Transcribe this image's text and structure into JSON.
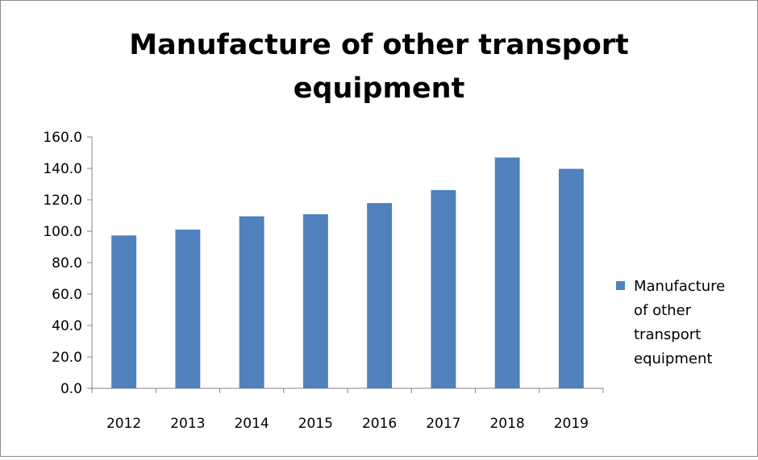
{
  "chart_data": {
    "type": "bar",
    "title_lines": [
      "Manufacture of other transport",
      "equipment"
    ],
    "categories": [
      "2012",
      "2013",
      "2014",
      "2015",
      "2016",
      "2017",
      "2018",
      "2019"
    ],
    "series": [
      {
        "name": "Manufacture of other transport equipment",
        "name_lines": [
          "Manufacture",
          "of other",
          "transport",
          "equipment"
        ],
        "values": [
          97.3,
          101.0,
          109.5,
          110.8,
          117.9,
          126.2,
          146.9,
          139.7
        ],
        "color": "#4f81bd"
      }
    ],
    "ylim": [
      0,
      160
    ],
    "yticks": [
      "0.0",
      "20.0",
      "40.0",
      "60.0",
      "80.0",
      "100.0",
      "120.0",
      "140.0",
      "160.0"
    ],
    "xlabel": "",
    "ylabel": "",
    "grid": false,
    "legend_position": "right"
  }
}
